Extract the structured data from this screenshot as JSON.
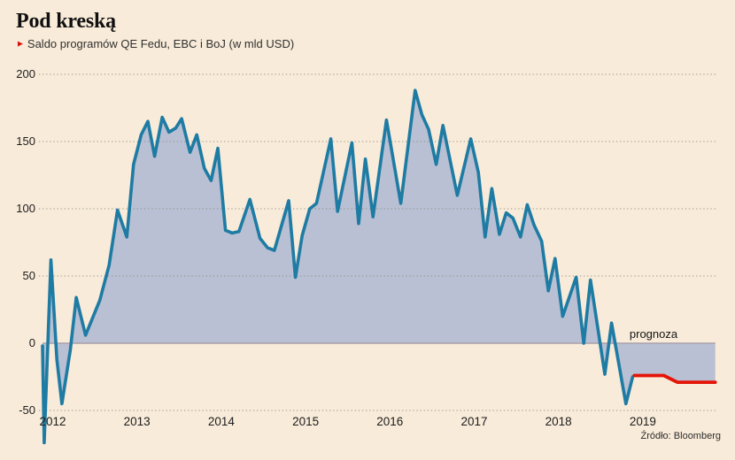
{
  "header": {
    "title": "Pod kreską",
    "subtitle_marker": "►",
    "subtitle": "Saldo programów QE Fedu, EBC i BoJ (w mld USD)"
  },
  "annotations": {
    "forecast_label": "prognoza"
  },
  "source": "Źródło: Bloomberg",
  "colors": {
    "background": "#f8ebd9",
    "series_line": "#1e7ba3",
    "area_fill": "#b9c0d4",
    "forecast_line": "#e41408",
    "zero_edge": "#a89fa9",
    "grid_dots": "#8a887c",
    "text": "#1c1c1c",
    "marker_red": "#d8130f"
  },
  "chart_data": {
    "type": "area",
    "title": "Pod kreską",
    "subtitle": "Saldo programów QE Fedu, EBC i BoJ (w mld USD)",
    "unit": "mld USD",
    "yticks": [
      200,
      150,
      100,
      50,
      0,
      -50
    ],
    "xticks": [
      2012,
      2013,
      2014,
      2015,
      2016,
      2017,
      2018,
      2019
    ],
    "ylim_displayed": [
      -50,
      200
    ],
    "x_end": 2019.98,
    "grid": "dotted-horizontal",
    "legend_position": "none",
    "series": [
      {
        "name": "Saldo programów QE (Fed + EBC + BoJ)",
        "role": "history",
        "points": [
          [
            2012.0,
            -2
          ],
          [
            2012.02,
            -74
          ],
          [
            2012.1,
            62
          ],
          [
            2012.17,
            -12
          ],
          [
            2012.23,
            -45
          ],
          [
            2012.33,
            -5
          ],
          [
            2012.4,
            34
          ],
          [
            2012.51,
            6
          ],
          [
            2012.68,
            32
          ],
          [
            2012.79,
            58
          ],
          [
            2012.89,
            99
          ],
          [
            2013.0,
            79
          ],
          [
            2013.08,
            133
          ],
          [
            2013.17,
            155
          ],
          [
            2013.25,
            165
          ],
          [
            2013.33,
            139
          ],
          [
            2013.42,
            168
          ],
          [
            2013.5,
            157
          ],
          [
            2013.58,
            160
          ],
          [
            2013.65,
            167
          ],
          [
            2013.75,
            142
          ],
          [
            2013.83,
            155
          ],
          [
            2013.92,
            130
          ],
          [
            2014.0,
            121
          ],
          [
            2014.08,
            145
          ],
          [
            2014.17,
            84
          ],
          [
            2014.25,
            82
          ],
          [
            2014.33,
            83
          ],
          [
            2014.46,
            107
          ],
          [
            2014.58,
            78
          ],
          [
            2014.67,
            71
          ],
          [
            2014.75,
            69
          ],
          [
            2014.92,
            106
          ],
          [
            2015.0,
            49
          ],
          [
            2015.08,
            80
          ],
          [
            2015.17,
            100
          ],
          [
            2015.25,
            104
          ],
          [
            2015.42,
            152
          ],
          [
            2015.5,
            98
          ],
          [
            2015.67,
            149
          ],
          [
            2015.75,
            89
          ],
          [
            2015.83,
            137
          ],
          [
            2015.92,
            94
          ],
          [
            2016.08,
            166
          ],
          [
            2016.25,
            104
          ],
          [
            2016.42,
            188
          ],
          [
            2016.5,
            170
          ],
          [
            2016.58,
            159
          ],
          [
            2016.67,
            133
          ],
          [
            2016.75,
            162
          ],
          [
            2016.92,
            110
          ],
          [
            2017.08,
            152
          ],
          [
            2017.17,
            127
          ],
          [
            2017.25,
            79
          ],
          [
            2017.33,
            115
          ],
          [
            2017.42,
            81
          ],
          [
            2017.5,
            97
          ],
          [
            2017.58,
            93
          ],
          [
            2017.67,
            79
          ],
          [
            2017.75,
            103
          ],
          [
            2017.83,
            88
          ],
          [
            2017.92,
            76
          ],
          [
            2018.0,
            39
          ],
          [
            2018.08,
            63
          ],
          [
            2018.17,
            20
          ],
          [
            2018.33,
            49
          ],
          [
            2018.42,
            0
          ],
          [
            2018.5,
            47
          ],
          [
            2018.67,
            -23
          ],
          [
            2018.75,
            15
          ],
          [
            2018.92,
            -45
          ],
          [
            2019.0,
            -25
          ]
        ]
      },
      {
        "name": "prognoza",
        "role": "forecast",
        "points": [
          [
            2019.02,
            -24
          ],
          [
            2019.37,
            -24
          ],
          [
            2019.53,
            -29
          ],
          [
            2019.98,
            -29
          ]
        ]
      }
    ]
  }
}
